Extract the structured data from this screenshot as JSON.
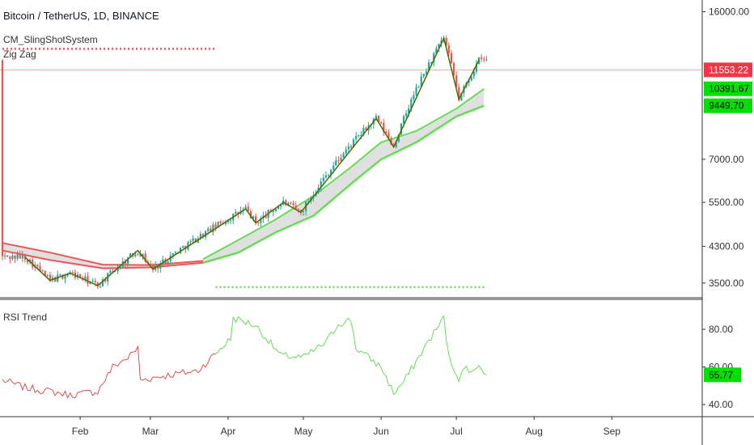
{
  "header": {
    "title": "Bitcoin / TetherUS, 1D, BINANCE",
    "indicators": [
      "CM_SlingShotSystem",
      "Zig Zag"
    ]
  },
  "rsi_panel": {
    "label": "RSI Trend"
  },
  "colors": {
    "up": "#26a69a",
    "down": "#ef5350",
    "zigzag": "#4f6b00",
    "green_line": "#66dd55",
    "red_line": "#ee5555",
    "band_fill": "#dddddd",
    "price_line": "#f4a6a6",
    "rsi_red": "#e05050",
    "rsi_green": "#66dd55",
    "tag_red": "#f23645",
    "tag_green": "#00e000"
  },
  "chart_data": [
    {
      "type": "line",
      "title": "Bitcoin / TetherUS, 1D, BINANCE",
      "x_labels": [
        "Feb",
        "Mar",
        "Apr",
        "May",
        "Jun",
        "Jul",
        "Aug",
        "Sep"
      ],
      "y_ticks": [
        "16000.00",
        "7000.00",
        "5500.00",
        "4300.00",
        "3500.00"
      ],
      "price_tags": [
        {
          "value": "11553.22",
          "color": "red"
        },
        {
          "value": "10391.67",
          "color": "green"
        },
        {
          "value": "9449.70",
          "color": "green"
        }
      ],
      "y_scale": "log",
      "zigzag": [
        {
          "d": "2019-01-10",
          "v": 4050
        },
        {
          "d": "2019-01-20",
          "v": 3550
        },
        {
          "d": "2019-01-28",
          "v": 3700
        },
        {
          "d": "2019-02-08",
          "v": 3450
        },
        {
          "d": "2019-02-24",
          "v": 4200
        },
        {
          "d": "2019-03-02",
          "v": 3780
        },
        {
          "d": "2019-04-08",
          "v": 5300
        },
        {
          "d": "2019-04-12",
          "v": 4900
        },
        {
          "d": "2019-04-23",
          "v": 5500
        },
        {
          "d": "2019-04-30",
          "v": 5200
        },
        {
          "d": "2019-05-30",
          "v": 8800
        },
        {
          "d": "2019-06-06",
          "v": 7500
        },
        {
          "d": "2019-06-26",
          "v": 13800
        },
        {
          "d": "2019-07-02",
          "v": 9800
        },
        {
          "d": "2019-07-10",
          "v": 12200
        }
      ],
      "slingshot_green": [
        {
          "d": "2019-03-22",
          "v": 3920
        },
        {
          "d": "2019-04-05",
          "v": 4150
        },
        {
          "d": "2019-04-20",
          "v": 4650
        },
        {
          "d": "2019-05-05",
          "v": 5100
        },
        {
          "d": "2019-05-20",
          "v": 6100
        },
        {
          "d": "2019-06-01",
          "v": 7000
        },
        {
          "d": "2019-06-15",
          "v": 7700
        },
        {
          "d": "2019-07-01",
          "v": 8900
        },
        {
          "d": "2019-07-12",
          "v": 9450
        }
      ],
      "slingshot_green_upper": [
        {
          "d": "2019-03-22",
          "v": 4000
        },
        {
          "d": "2019-04-05",
          "v": 4450
        },
        {
          "d": "2019-04-20",
          "v": 5000
        },
        {
          "d": "2019-05-05",
          "v": 5700
        },
        {
          "d": "2019-05-20",
          "v": 6700
        },
        {
          "d": "2019-06-01",
          "v": 7700
        },
        {
          "d": "2019-06-15",
          "v": 8200
        },
        {
          "d": "2019-07-01",
          "v": 9300
        },
        {
          "d": "2019-07-12",
          "v": 10390
        }
      ],
      "slingshot_red": [
        {
          "d": "2019-01-01",
          "v": 4200
        },
        {
          "d": "2019-01-20",
          "v": 3980
        },
        {
          "d": "2019-02-10",
          "v": 3800
        },
        {
          "d": "2019-03-01",
          "v": 3820
        },
        {
          "d": "2019-03-22",
          "v": 3920
        }
      ],
      "slingshot_red_upper": [
        {
          "d": "2019-01-01",
          "v": 4380
        },
        {
          "d": "2019-01-20",
          "v": 4150
        },
        {
          "d": "2019-02-10",
          "v": 3880
        },
        {
          "d": "2019-03-01",
          "v": 3870
        },
        {
          "d": "2019-03-22",
          "v": 3960
        }
      ],
      "red_dotted_level": 13000,
      "green_dotted_level": 3420,
      "last_price": 11553.22
    },
    {
      "type": "line",
      "title": "RSI Trend",
      "y_ticks": [
        "80.00",
        "60.00",
        "40.00"
      ],
      "last_value": "55.77",
      "rsi": [
        {
          "d": "2019-01-01",
          "v": 53
        },
        {
          "d": "2019-01-10",
          "v": 49
        },
        {
          "d": "2019-01-20",
          "v": 47
        },
        {
          "d": "2019-01-28",
          "v": 45
        },
        {
          "d": "2019-02-08",
          "v": 47
        },
        {
          "d": "2019-02-14",
          "v": 60
        },
        {
          "d": "2019-02-20",
          "v": 65
        },
        {
          "d": "2019-02-24",
          "v": 70
        },
        {
          "d": "2019-02-25",
          "v": 53
        },
        {
          "d": "2019-03-05",
          "v": 55
        },
        {
          "d": "2019-03-20",
          "v": 58
        },
        {
          "d": "2019-04-02",
          "v": 75
        },
        {
          "d": "2019-04-03",
          "v": 86
        },
        {
          "d": "2019-04-12",
          "v": 82
        },
        {
          "d": "2019-04-22",
          "v": 66
        },
        {
          "d": "2019-05-01",
          "v": 65
        },
        {
          "d": "2019-05-10",
          "v": 73
        },
        {
          "d": "2019-05-15",
          "v": 83
        },
        {
          "d": "2019-05-20",
          "v": 85
        },
        {
          "d": "2019-05-22",
          "v": 70
        },
        {
          "d": "2019-06-01",
          "v": 60
        },
        {
          "d": "2019-06-06",
          "v": 46
        },
        {
          "d": "2019-06-10",
          "v": 52
        },
        {
          "d": "2019-06-20",
          "v": 74
        },
        {
          "d": "2019-06-26",
          "v": 86
        },
        {
          "d": "2019-06-28",
          "v": 65
        },
        {
          "d": "2019-07-02",
          "v": 54
        },
        {
          "d": "2019-07-05",
          "v": 60
        },
        {
          "d": "2019-07-08",
          "v": 57
        },
        {
          "d": "2019-07-10",
          "v": 62
        },
        {
          "d": "2019-07-13",
          "v": 55.77
        }
      ]
    }
  ]
}
